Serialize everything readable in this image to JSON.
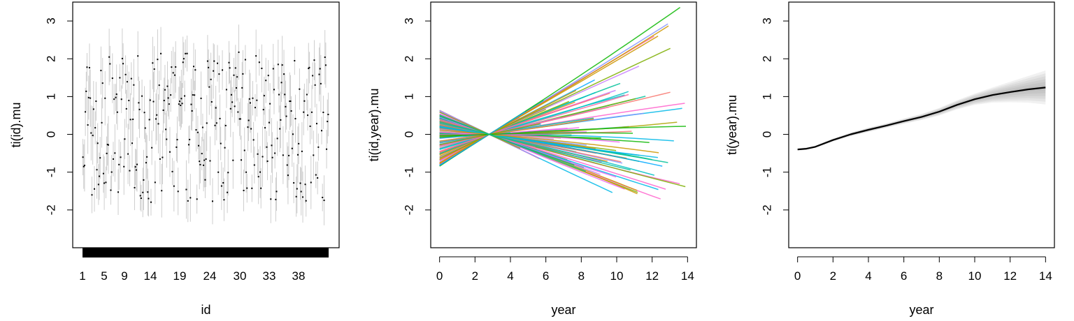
{
  "chart_data": [
    {
      "type": "scatter",
      "ylabel": "ti(id).mu",
      "xlabel": "id",
      "ylim": [
        -3,
        3.5
      ],
      "y_ticks": [
        -2,
        -1,
        0,
        1,
        2,
        3
      ],
      "x_tick_labels": [
        "1",
        "5",
        "9",
        "14",
        "19",
        "24",
        "30",
        "33",
        "38"
      ],
      "rug": true,
      "n_points": 300,
      "value_range": [
        -1.8,
        2.2
      ],
      "colors": {
        "points": "#000000",
        "band": "#9a9a9a"
      }
    },
    {
      "type": "line",
      "ylabel": "ti(id,year).mu",
      "xlabel": "year",
      "xlim": [
        -0.5,
        14.5
      ],
      "ylim": [
        -3,
        3.5
      ],
      "x_ticks": [
        0,
        2,
        4,
        6,
        8,
        10,
        12,
        14
      ],
      "y_ticks": [
        -2,
        -1,
        0,
        1,
        2,
        3
      ],
      "pivot": [
        2.8,
        0
      ],
      "series_value_range_at_0": [
        -0.85,
        0.65
      ],
      "series_value_range_at_14": [
        -1.85,
        0.25
      ],
      "palette": [
        "#F8766D",
        "#E68613",
        "#CD9600",
        "#ABA300",
        "#7CAE00",
        "#0CB702",
        "#00BE67",
        "#00C19A",
        "#00BFC4",
        "#00B8E7",
        "#00A9FF",
        "#8494FF",
        "#C77CFF",
        "#ED68ED",
        "#FF61CC",
        "#FF68A1"
      ]
    },
    {
      "type": "line",
      "ylabel": "ti(year).mu",
      "xlabel": "year",
      "xlim": [
        -0.5,
        14.5
      ],
      "ylim": [
        -3,
        3.5
      ],
      "x_ticks": [
        0,
        2,
        4,
        6,
        8,
        10,
        12,
        14
      ],
      "y_ticks": [
        -2,
        -1,
        0,
        1,
        2,
        3
      ],
      "series": [
        {
          "x": [
            0,
            0.5,
            1,
            1.5,
            2,
            3,
            4,
            5,
            6,
            7,
            8,
            9,
            10,
            11,
            12,
            13,
            14
          ],
          "values": [
            -0.4,
            -0.38,
            -0.33,
            -0.24,
            -0.15,
            0.0,
            0.12,
            0.23,
            0.35,
            0.46,
            0.6,
            0.78,
            0.93,
            1.04,
            1.12,
            1.19,
            1.24
          ]
        }
      ],
      "band_halfwidth": [
        0.03,
        0.03,
        0.03,
        0.04,
        0.04,
        0.05,
        0.06,
        0.06,
        0.07,
        0.08,
        0.1,
        0.12,
        0.15,
        0.2,
        0.27,
        0.35,
        0.45
      ],
      "colors": {
        "line": "#000000",
        "band": "#8c8c8c"
      }
    }
  ]
}
